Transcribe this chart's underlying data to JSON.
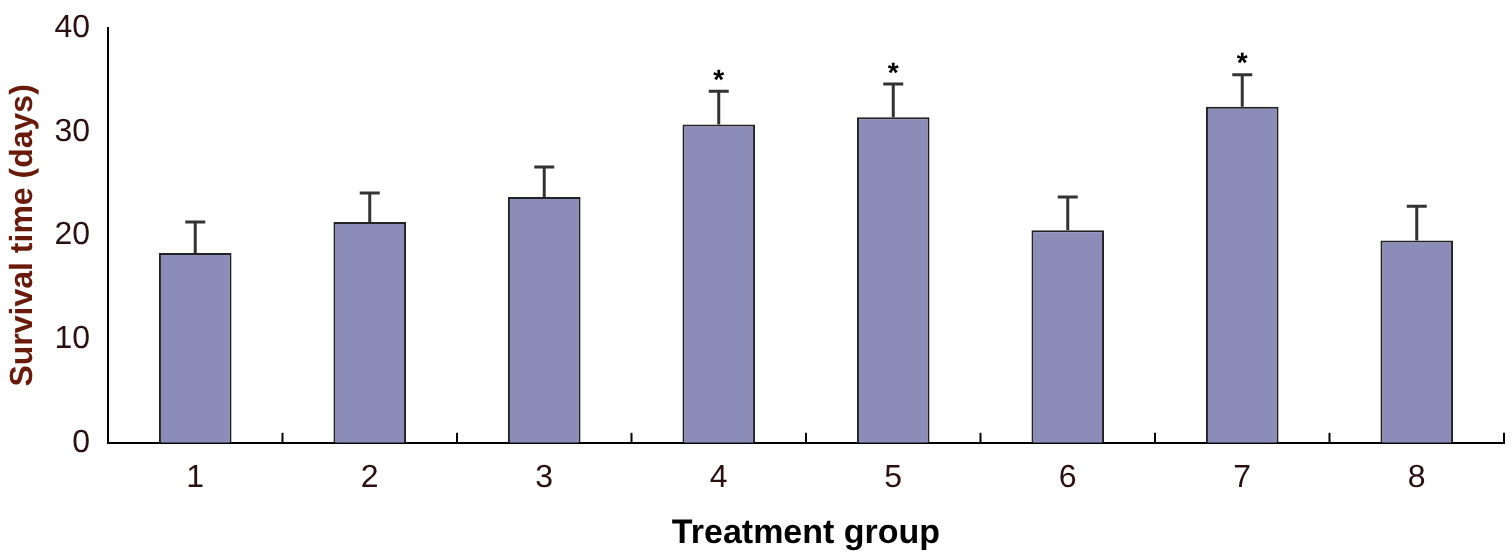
{
  "chart_data": {
    "type": "bar",
    "xlabel": "Treatment group",
    "ylabel": "Survival time (days)",
    "categories": [
      "1",
      "2",
      "3",
      "4",
      "5",
      "6",
      "7",
      "8"
    ],
    "values": [
      18.3,
      21.3,
      23.7,
      30.7,
      31.4,
      20.5,
      32.4,
      19.5
    ],
    "errors": [
      [
        18.3,
        21.3
      ],
      [
        21.3,
        24.1
      ],
      [
        23.7,
        26.6
      ],
      [
        30.7,
        33.9
      ],
      [
        31.4,
        34.6
      ],
      [
        20.5,
        23.7
      ],
      [
        32.4,
        35.5
      ],
      [
        19.5,
        22.8
      ]
    ],
    "color": "#8b8db8",
    "ylim": [
      0,
      40
    ],
    "yticks": [
      0,
      10,
      20,
      30,
      40
    ],
    "grid": false,
    "legend": false,
    "annotations": [
      {
        "text": "*",
        "x": "4",
        "y": 33.9
      },
      {
        "text": "*",
        "x": "5",
        "y": 34.6
      },
      {
        "text": "*",
        "x": "7",
        "y": 35.5
      }
    ]
  }
}
